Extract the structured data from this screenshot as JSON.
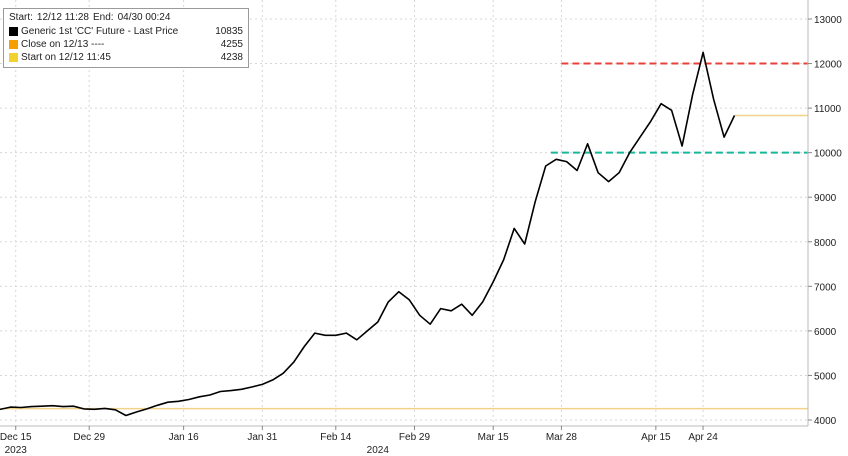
{
  "legend": {
    "start_label": "Start:",
    "start_value": "12/12 11:28",
    "end_label": "End:",
    "end_value": "04/30 00:24",
    "items": [
      {
        "name": "Generic 1st 'CC' Future - Last Price",
        "value": "10835",
        "color": "#000000"
      },
      {
        "name": "Close on 12/13 ----",
        "value": "4255",
        "color": "#f5a000"
      },
      {
        "name": "Start on 12/12 11:45",
        "value": "4238",
        "color": "#f2d22e"
      }
    ]
  },
  "chart_data": {
    "type": "line",
    "title": "",
    "xlabel": "",
    "ylabel": "",
    "ylim": [
      4000,
      13000
    ],
    "yticks": [
      4000,
      5000,
      6000,
      7000,
      8000,
      9000,
      10000,
      11000,
      12000,
      13000
    ],
    "xrange": [
      "2023-12-12",
      "2024-05-14"
    ],
    "xticks": [
      {
        "date": "2023-12-15",
        "label": "Dec 15"
      },
      {
        "date": "2023-12-29",
        "label": "Dec 29"
      },
      {
        "date": "2024-01-16",
        "label": "Jan 16"
      },
      {
        "date": "2024-01-31",
        "label": "Jan 31"
      },
      {
        "date": "2024-02-14",
        "label": "Feb 14"
      },
      {
        "date": "2024-02-29",
        "label": "Feb 29"
      },
      {
        "date": "2024-03-15",
        "label": "Mar 15"
      },
      {
        "date": "2024-03-28",
        "label": "Mar 28"
      },
      {
        "date": "2024-04-15",
        "label": "Apr 15"
      },
      {
        "date": "2024-04-24",
        "label": "Apr 24"
      }
    ],
    "year_labels": [
      {
        "date": "2023-12-15",
        "label": "2023"
      },
      {
        "date": "2024-02-22",
        "label": "2024"
      }
    ],
    "grid": true,
    "legend_position": "top-left",
    "series": [
      {
        "name": "Generic 1st 'CC' Future - Last Price",
        "color": "#000000",
        "points": [
          [
            "2023-12-12",
            4238
          ],
          [
            "2023-12-14",
            4290
          ],
          [
            "2023-12-16",
            4280
          ],
          [
            "2023-12-18",
            4300
          ],
          [
            "2023-12-20",
            4310
          ],
          [
            "2023-12-22",
            4320
          ],
          [
            "2023-12-24",
            4300
          ],
          [
            "2023-12-26",
            4310
          ],
          [
            "2023-12-28",
            4250
          ],
          [
            "2023-12-30",
            4240
          ],
          [
            "2024-01-01",
            4260
          ],
          [
            "2024-01-03",
            4230
          ],
          [
            "2024-01-05",
            4100
          ],
          [
            "2024-01-07",
            4180
          ],
          [
            "2024-01-09",
            4250
          ],
          [
            "2024-01-11",
            4330
          ],
          [
            "2024-01-13",
            4400
          ],
          [
            "2024-01-15",
            4420
          ],
          [
            "2024-01-17",
            4460
          ],
          [
            "2024-01-19",
            4520
          ],
          [
            "2024-01-21",
            4560
          ],
          [
            "2024-01-23",
            4640
          ],
          [
            "2024-01-25",
            4660
          ],
          [
            "2024-01-27",
            4690
          ],
          [
            "2024-01-29",
            4740
          ],
          [
            "2024-01-31",
            4800
          ],
          [
            "2024-02-02",
            4900
          ],
          [
            "2024-02-04",
            5050
          ],
          [
            "2024-02-06",
            5300
          ],
          [
            "2024-02-08",
            5650
          ],
          [
            "2024-02-10",
            5950
          ],
          [
            "2024-02-12",
            5900
          ],
          [
            "2024-02-14",
            5900
          ],
          [
            "2024-02-16",
            5950
          ],
          [
            "2024-02-18",
            5800
          ],
          [
            "2024-02-20",
            6000
          ],
          [
            "2024-02-22",
            6200
          ],
          [
            "2024-02-24",
            6650
          ],
          [
            "2024-02-26",
            6880
          ],
          [
            "2024-02-28",
            6700
          ],
          [
            "2024-03-01",
            6350
          ],
          [
            "2024-03-03",
            6150
          ],
          [
            "2024-03-05",
            6500
          ],
          [
            "2024-03-07",
            6450
          ],
          [
            "2024-03-09",
            6600
          ],
          [
            "2024-03-11",
            6350
          ],
          [
            "2024-03-13",
            6650
          ],
          [
            "2024-03-15",
            7100
          ],
          [
            "2024-03-17",
            7600
          ],
          [
            "2024-03-19",
            8300
          ],
          [
            "2024-03-21",
            7950
          ],
          [
            "2024-03-23",
            8900
          ],
          [
            "2024-03-25",
            9700
          ],
          [
            "2024-03-27",
            9850
          ],
          [
            "2024-03-29",
            9800
          ],
          [
            "2024-03-31",
            9600
          ],
          [
            "2024-04-02",
            10200
          ],
          [
            "2024-04-04",
            9550
          ],
          [
            "2024-04-06",
            9350
          ],
          [
            "2024-04-08",
            9550
          ],
          [
            "2024-04-10",
            10000
          ],
          [
            "2024-04-12",
            10350
          ],
          [
            "2024-04-14",
            10700
          ],
          [
            "2024-04-16",
            11100
          ],
          [
            "2024-04-18",
            10950
          ],
          [
            "2024-04-20",
            10150
          ],
          [
            "2024-04-22",
            11300
          ],
          [
            "2024-04-24",
            12250
          ],
          [
            "2024-04-26",
            11200
          ],
          [
            "2024-04-28",
            10350
          ],
          [
            "2024-04-30",
            10835
          ]
        ]
      }
    ],
    "reference_lines": [
      {
        "y": 12000,
        "color": "#e8413c",
        "dash": true,
        "x_from": "2024-03-28"
      },
      {
        "y": 10000,
        "color": "#16b89a",
        "dash": true,
        "x_from": "2024-03-26"
      },
      {
        "y": 10835,
        "color": "#f2d28a",
        "dash": false,
        "x_from": "2024-04-30"
      },
      {
        "y": 4255,
        "color": "#f2d28a",
        "dash": false,
        "x_from": "2023-12-12"
      }
    ]
  }
}
